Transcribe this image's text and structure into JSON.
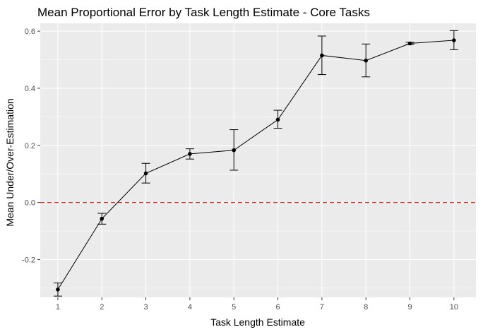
{
  "chart_data": {
    "type": "line",
    "title": "Mean Proportional Error by Task Length Estimate - Core Tasks",
    "xlabel": "Task Length Estimate",
    "ylabel": "Mean Under/Over-Estimation",
    "x": [
      1,
      2,
      3,
      4,
      5,
      6,
      7,
      8,
      9,
      10
    ],
    "y": [
      -0.305,
      -0.057,
      0.102,
      0.17,
      0.183,
      0.29,
      0.515,
      0.497,
      0.557,
      0.568
    ],
    "error_low": [
      -0.328,
      -0.076,
      0.068,
      0.152,
      0.113,
      0.26,
      0.448,
      0.44,
      0.553,
      0.535
    ],
    "error_high": [
      -0.282,
      -0.038,
      0.137,
      0.188,
      0.255,
      0.323,
      0.583,
      0.555,
      0.561,
      0.602
    ],
    "xlim": [
      0.6,
      10.5
    ],
    "ylim": [
      -0.3325,
      0.6275
    ],
    "xticks": [
      "1",
      "2",
      "3",
      "4",
      "5",
      "6",
      "7",
      "8",
      "9",
      "10"
    ],
    "yticks": [
      {
        "value": -0.2,
        "label": "-0.2"
      },
      {
        "value": 0.0,
        "label": "0.0"
      },
      {
        "value": 0.2,
        "label": "0.2"
      },
      {
        "value": 0.4,
        "label": "0.4"
      },
      {
        "value": 0.6,
        "label": "0.6"
      }
    ],
    "reference_line": {
      "y": 0,
      "style": "dashed",
      "color": "#d62728"
    },
    "grid": true,
    "panel_background": "#ebebeb",
    "grid_major_color": "#ffffff",
    "line_color": "#000000"
  }
}
